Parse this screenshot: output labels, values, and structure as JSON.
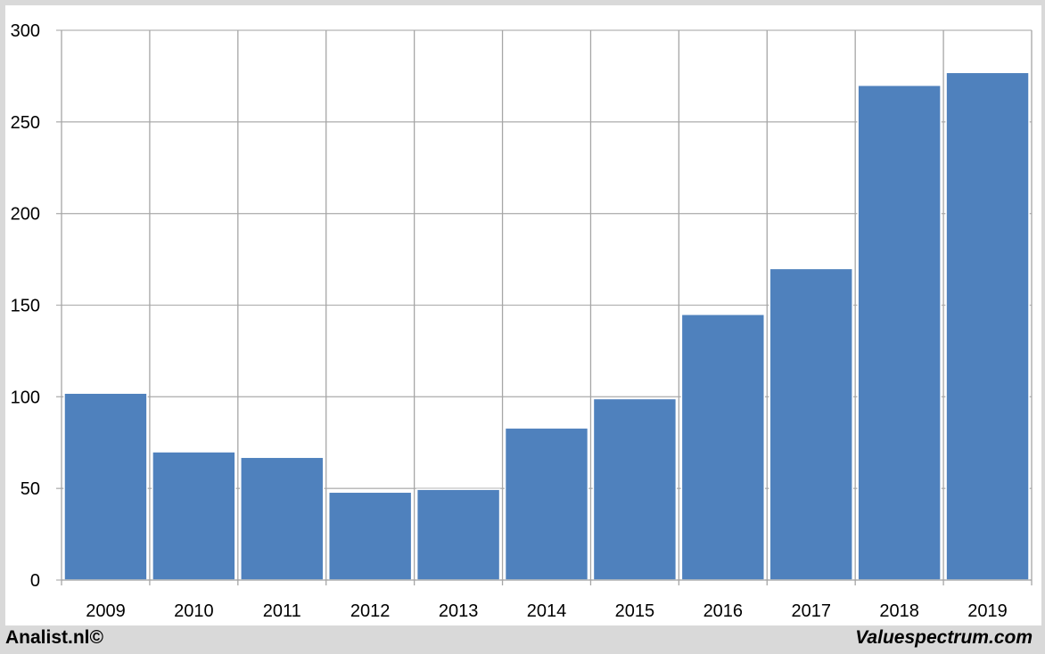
{
  "chart_data": {
    "type": "bar",
    "title": "",
    "xlabel": "",
    "ylabel": "",
    "categories": [
      "2009",
      "2010",
      "2011",
      "2012",
      "2013",
      "2014",
      "2015",
      "2016",
      "2017",
      "2018",
      "2019"
    ],
    "values": [
      102,
      70,
      67,
      48,
      49.5,
      83,
      99,
      145,
      170,
      270,
      277
    ],
    "ylim": [
      0,
      300
    ],
    "yticks": [
      "0",
      "50",
      "100",
      "150",
      "200",
      "250",
      "300"
    ],
    "grid": true,
    "bar_color": "#4f81bd"
  },
  "footer": {
    "left": "Analist.nl©",
    "right": "Valuespectrum.com"
  }
}
